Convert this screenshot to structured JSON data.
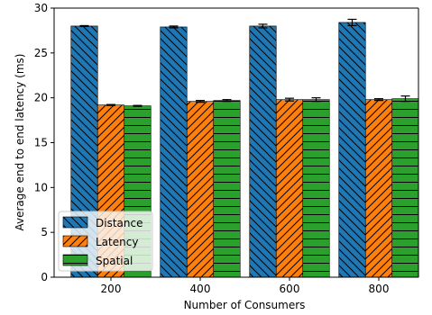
{
  "chart_data": {
    "type": "bar",
    "title": "",
    "xlabel": "Number of Consumers",
    "ylabel": "Average end to end latency (ms)",
    "categories": [
      "200",
      "400",
      "600",
      "800"
    ],
    "ylim": [
      0,
      30
    ],
    "yticks": [
      "0",
      "5",
      "10",
      "15",
      "20",
      "25",
      "30"
    ],
    "grid": false,
    "legend_position": "lower-left",
    "series": [
      {
        "name": "Distance",
        "values": [
          28.0,
          27.9,
          28.0,
          28.4
        ],
        "errors": [
          0.05,
          0.1,
          0.2,
          0.35
        ],
        "color": "#1f77b4",
        "hatch": "backslash"
      },
      {
        "name": "Latency",
        "values": [
          19.2,
          19.6,
          19.8,
          19.8
        ],
        "errors": [
          0.05,
          0.1,
          0.15,
          0.1
        ],
        "color": "#ff7f0e",
        "hatch": "forwardslash"
      },
      {
        "name": "Spatial",
        "values": [
          19.1,
          19.7,
          19.8,
          19.9
        ],
        "errors": [
          0.05,
          0.1,
          0.2,
          0.3
        ],
        "color": "#2ca02c",
        "hatch": "horizontal"
      }
    ]
  }
}
